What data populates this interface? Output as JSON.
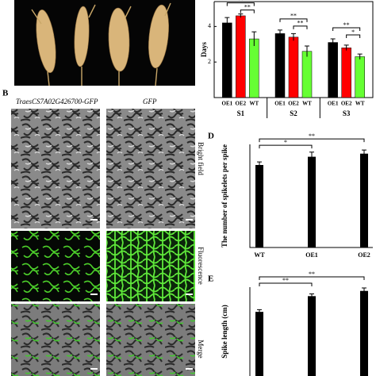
{
  "figure": {
    "panel_labels": [
      "B",
      "D",
      "E"
    ],
    "column_headers": [
      "TraesCS7A02G426700-GFP",
      "GFP"
    ],
    "row_labels": [
      "Bright field",
      "Fluorescence",
      "Merge"
    ]
  },
  "chart_data": [
    {
      "type": "grouped-bar",
      "y_label": "Days",
      "categories": [
        "S1",
        "S2",
        "S3"
      ],
      "series": [
        {
          "name": "OE1",
          "color": "#000000",
          "values": [
            4.2,
            3.6,
            3.1
          ],
          "errors": [
            0.3,
            0.2,
            0.2
          ]
        },
        {
          "name": "OE2",
          "color": "#ff0000",
          "values": [
            4.6,
            3.4,
            2.8
          ],
          "errors": [
            0.1,
            0.2,
            0.15
          ]
        },
        {
          "name": "WT",
          "color": "#66ff33",
          "values": [
            3.3,
            2.6,
            2.3
          ],
          "errors": [
            0.4,
            0.3,
            0.15
          ]
        }
      ],
      "ylim": [
        0,
        5.4
      ],
      "yticks": [
        2,
        4
      ],
      "annotations": [
        "**",
        "**",
        "**",
        "**",
        "**",
        "*"
      ]
    },
    {
      "type": "bar",
      "y_label": "The number of spikelets per spike",
      "categories": [
        "WT",
        "OE1",
        "OE2"
      ],
      "values": [
        16,
        17.6,
        18.2
      ],
      "errors": [
        0.6,
        0.9,
        0.7
      ],
      "color": "#000000",
      "ylim": [
        0,
        20
      ],
      "annotations": [
        "*",
        "**"
      ]
    },
    {
      "type": "bar",
      "y_label": "Spike length (cm)",
      "values": [
        9.2,
        11.3,
        12.0
      ],
      "errors": [
        0.3,
        0.3,
        0.4
      ],
      "color": "#000000",
      "ylim": [
        0,
        12.5
      ],
      "annotations": [
        "**",
        "**"
      ]
    }
  ]
}
